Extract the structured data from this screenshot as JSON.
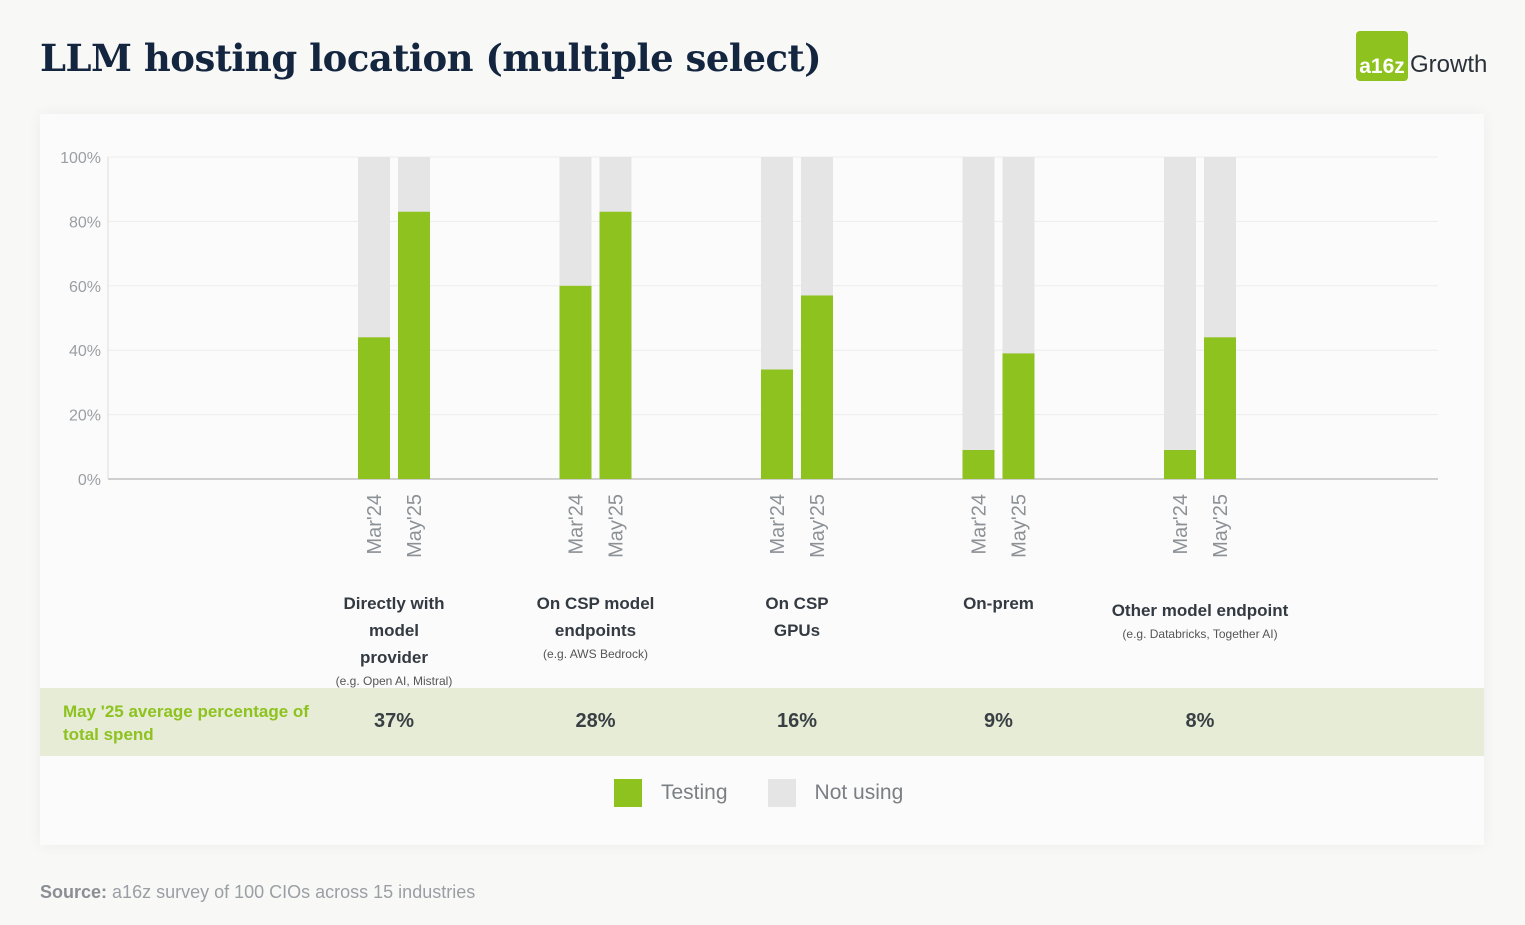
{
  "header": {
    "title": "LLM hosting location (multiple select)",
    "logo_mark": "a16z",
    "logo_text": "Growth"
  },
  "colors": {
    "testing": "#8dc21f",
    "not_using": "#e5e5e5",
    "band": "#e6ecd6",
    "title": "#14253f"
  },
  "chart_data": {
    "type": "bar",
    "stacked": true,
    "y_tick_labels": [
      "0%",
      "20%",
      "40%",
      "60%",
      "80%",
      "100%"
    ],
    "ylim": [
      0,
      100
    ],
    "grid": true,
    "legend_position": "bottom-center",
    "periods": [
      "Mar'24",
      "May'25"
    ],
    "categories": [
      {
        "label": "Directly with model provider",
        "sub": "(e.g. Open AI, Mistral)",
        "values": [
          44,
          83
        ]
      },
      {
        "label": "On CSP model endpoints",
        "sub": "(e.g. AWS Bedrock)",
        "values": [
          60,
          83
        ]
      },
      {
        "label": "On CSP GPUs",
        "sub": "",
        "values": [
          34,
          57
        ]
      },
      {
        "label": "On-prem",
        "sub": "",
        "values": [
          9,
          39
        ]
      },
      {
        "label": "Other model endpoint",
        "sub": "(e.g. Databricks, Together AI)",
        "values": [
          9,
          44
        ]
      }
    ],
    "series": [
      {
        "name": "Testing",
        "color": "#8dc21f"
      },
      {
        "name": "Not using",
        "color": "#e5e5e5"
      }
    ]
  },
  "spend_row": {
    "label": "May '25 average percentage of total spend",
    "values": [
      "37%",
      "28%",
      "16%",
      "9%",
      "8%"
    ]
  },
  "legend": {
    "testing": "Testing",
    "not_using": "Not using"
  },
  "source": {
    "prefix": "Source:",
    "text": "a16z survey of 100 CIOs across 15 industries"
  }
}
